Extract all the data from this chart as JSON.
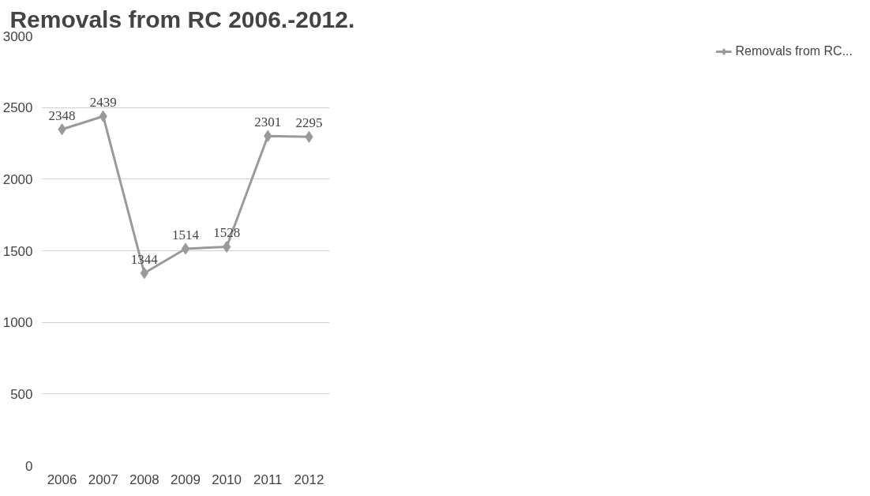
{
  "chart_data": {
    "type": "line",
    "title": "Removals from RC  2006.-2012.",
    "categories": [
      "2006",
      "2007",
      "2008",
      "2009",
      "2010",
      "2011",
      "2012"
    ],
    "series": [
      {
        "name": "Removals from RC...",
        "color": "#9a9a9a",
        "values": [
          2348,
          2439,
          1344,
          1514,
          1528,
          2301,
          2295
        ]
      }
    ],
    "ylim": [
      0,
      3000
    ],
    "yticks": [
      0,
      500,
      1000,
      1500,
      2000,
      2500,
      3000
    ],
    "grid": "y",
    "legend": "right",
    "marker": "diamond",
    "data_labels": true
  }
}
